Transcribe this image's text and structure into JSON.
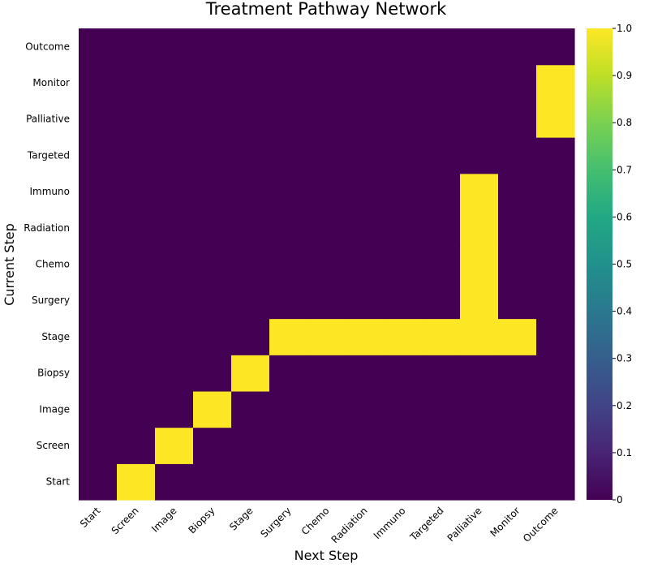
{
  "chart_data": {
    "type": "heatmap",
    "title": "Treatment Pathway Network",
    "xlabel": "Next Step",
    "ylabel": "Current Step",
    "x_categories": [
      "Start",
      "Screen",
      "Image",
      "Biopsy",
      "Stage",
      "Surgery",
      "Chemo",
      "Radiation",
      "Immuno",
      "Targeted",
      "Palliative",
      "Monitor",
      "Outcome"
    ],
    "y_categories": [
      "Start",
      "Screen",
      "Image",
      "Biopsy",
      "Stage",
      "Surgery",
      "Chemo",
      "Radiation",
      "Immuno",
      "Targeted",
      "Palliative",
      "Monitor",
      "Outcome"
    ],
    "values": [
      [
        0,
        1,
        0,
        0,
        0,
        0,
        0,
        0,
        0,
        0,
        0,
        0,
        0
      ],
      [
        0,
        0,
        1,
        0,
        0,
        0,
        0,
        0,
        0,
        0,
        0,
        0,
        0
      ],
      [
        0,
        0,
        0,
        1,
        0,
        0,
        0,
        0,
        0,
        0,
        0,
        0,
        0
      ],
      [
        0,
        0,
        0,
        0,
        1,
        0,
        0,
        0,
        0,
        0,
        0,
        0,
        0
      ],
      [
        0,
        0,
        0,
        0,
        0,
        1,
        1,
        1,
        1,
        1,
        1,
        1,
        0
      ],
      [
        0,
        0,
        0,
        0,
        0,
        0,
        0,
        0,
        0,
        0,
        1,
        0,
        0
      ],
      [
        0,
        0,
        0,
        0,
        0,
        0,
        0,
        0,
        0,
        0,
        1,
        0,
        0
      ],
      [
        0,
        0,
        0,
        0,
        0,
        0,
        0,
        0,
        0,
        0,
        1,
        0,
        0
      ],
      [
        0,
        0,
        0,
        0,
        0,
        0,
        0,
        0,
        0,
        0,
        1,
        0,
        0
      ],
      [
        0,
        0,
        0,
        0,
        0,
        0,
        0,
        0,
        0,
        0,
        0,
        0,
        0
      ],
      [
        0,
        0,
        0,
        0,
        0,
        0,
        0,
        0,
        0,
        0,
        0,
        0,
        1
      ],
      [
        0,
        0,
        0,
        0,
        0,
        0,
        0,
        0,
        0,
        0,
        0,
        0,
        1
      ],
      [
        0,
        0,
        0,
        0,
        0,
        0,
        0,
        0,
        0,
        0,
        0,
        0,
        0
      ]
    ],
    "colormap": "viridis",
    "colorbar": {
      "range": [
        0,
        1
      ],
      "ticks": [
        "0",
        "0.1",
        "0.2",
        "0.3",
        "0.4",
        "0.5",
        "0.6",
        "0.7",
        "0.8",
        "0.9",
        "1.0"
      ]
    },
    "colors": {
      "low": "#440154",
      "high": "#fde725"
    }
  }
}
